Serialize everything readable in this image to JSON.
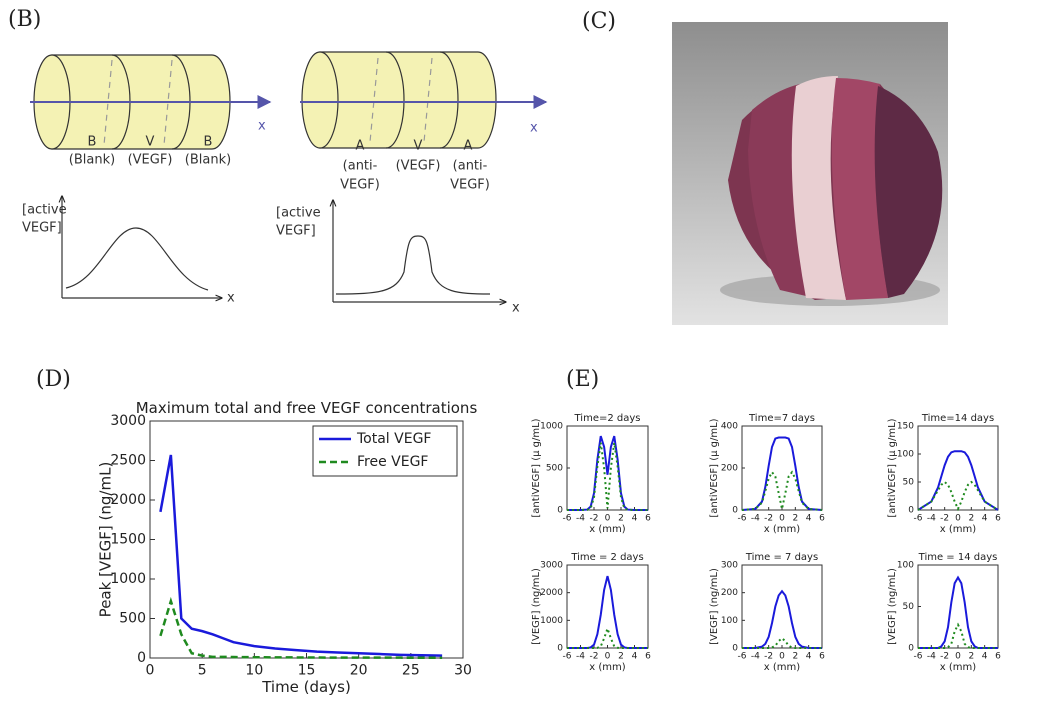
{
  "panel_labels": [
    "(B)",
    "(C)",
    "(D)",
    "(E)"
  ],
  "diagram": {
    "left": {
      "segments": [
        {
          "letter": "B",
          "caption": [
            "(Blank)"
          ]
        },
        {
          "letter": "V",
          "caption": [
            "(VEGF)"
          ]
        },
        {
          "letter": "B",
          "caption": [
            "(Blank)"
          ]
        }
      ],
      "axis_label": "x",
      "plot_ylabel": [
        "[active",
        "VEGF]"
      ],
      "plot_xlabel": "x"
    },
    "right": {
      "segments": [
        {
          "letter": "A",
          "caption": [
            "(anti-",
            "VEGF)"
          ]
        },
        {
          "letter": "V",
          "caption": [
            "(VEGF)"
          ]
        },
        {
          "letter": "A",
          "caption": [
            "(anti-",
            "VEGF)"
          ]
        }
      ],
      "axis_label": "x",
      "plot_ylabel": [
        "[active",
        "VEGF]"
      ],
      "plot_xlabel": "x"
    }
  },
  "chart_data": [
    {
      "type": "line",
      "title": "Maximum total and free VEGF concentrations",
      "xlabel": "Time (days)",
      "ylabel": "Peak [VEGF] (ng/mL)",
      "x": [
        1,
        2,
        3,
        4,
        5,
        6,
        7,
        8,
        10,
        12,
        14,
        16,
        18,
        20,
        22,
        24,
        26,
        28
      ],
      "series": [
        {
          "name": "Total VEGF",
          "color": "#1a1adb",
          "style": "solid",
          "values": [
            1850,
            2570,
            500,
            370,
            340,
            300,
            250,
            200,
            150,
            120,
            100,
            80,
            70,
            60,
            50,
            40,
            35,
            30
          ]
        },
        {
          "name": "Free VEGF",
          "color": "#1f8a1f",
          "style": "dashed",
          "values": [
            280,
            720,
            300,
            60,
            30,
            15,
            15,
            12,
            10,
            8,
            7,
            6,
            5,
            5,
            4,
            4,
            3,
            3
          ]
        }
      ],
      "xlim": [
        0,
        30
      ],
      "xticks": [
        0,
        5,
        10,
        15,
        20,
        25,
        30
      ],
      "ylim": [
        0,
        3000
      ],
      "yticks": [
        0,
        500,
        1000,
        1500,
        2000,
        2500,
        3000
      ],
      "legend": "upper right"
    },
    {
      "type": "line",
      "title": "Time=2 days",
      "xlabel": "x (mm)",
      "ylabel": "[antiVEGF] (μ g/mL)",
      "x": [
        -6,
        -4,
        -3,
        -2.5,
        -2,
        -1.5,
        -1,
        -0.5,
        0,
        0.5,
        1,
        1.5,
        2,
        2.5,
        3,
        4,
        6
      ],
      "series": [
        {
          "color": "#1a1adb",
          "style": "solid",
          "values": [
            0,
            0,
            5,
            40,
            200,
            600,
            880,
            750,
            420,
            750,
            880,
            600,
            200,
            40,
            5,
            0,
            0
          ]
        },
        {
          "color": "#1f8a1f",
          "style": "dotted",
          "values": [
            0,
            0,
            2,
            20,
            150,
            520,
            800,
            500,
            20,
            500,
            800,
            520,
            150,
            20,
            2,
            0,
            0
          ]
        }
      ],
      "xlim": [
        -6,
        6
      ],
      "xticks": [
        -6,
        -4,
        -2,
        0,
        2,
        4,
        6
      ],
      "ylim": [
        0,
        1000
      ],
      "yticks": [
        0,
        500,
        1000
      ]
    },
    {
      "type": "line",
      "title": "Time=7 days",
      "xlabel": "x (mm)",
      "ylabel": "[antiVEGF] (μ g/mL)",
      "x": [
        -6,
        -4,
        -3,
        -2.5,
        -2,
        -1.5,
        -1,
        -0.5,
        0,
        0.5,
        1,
        1.5,
        2,
        2.5,
        3,
        4,
        6
      ],
      "series": [
        {
          "color": "#1a1adb",
          "style": "solid",
          "values": [
            0,
            5,
            40,
            110,
            210,
            300,
            340,
            345,
            345,
            345,
            340,
            300,
            210,
            110,
            40,
            5,
            0
          ]
        },
        {
          "color": "#1f8a1f",
          "style": "dotted",
          "values": [
            0,
            5,
            35,
            90,
            150,
            180,
            160,
            80,
            5,
            80,
            160,
            180,
            150,
            90,
            35,
            5,
            0
          ]
        }
      ],
      "xlim": [
        -6,
        6
      ],
      "xticks": [
        -6,
        -4,
        -2,
        0,
        2,
        4,
        6
      ],
      "ylim": [
        0,
        400
      ],
      "yticks": [
        0,
        200,
        400
      ]
    },
    {
      "type": "line",
      "title": "Time=14 days",
      "xlabel": "x (mm)",
      "ylabel": "[antiVEGF] (μ g/mL)",
      "x": [
        -6,
        -4,
        -3,
        -2.5,
        -2,
        -1.5,
        -1,
        -0.5,
        0,
        0.5,
        1,
        1.5,
        2,
        2.5,
        3,
        4,
        6
      ],
      "series": [
        {
          "color": "#1a1adb",
          "style": "solid",
          "values": [
            0,
            15,
            40,
            60,
            80,
            95,
            103,
            105,
            105,
            105,
            103,
            95,
            80,
            60,
            40,
            15,
            0
          ]
        },
        {
          "color": "#1f8a1f",
          "style": "dotted",
          "values": [
            0,
            15,
            35,
            45,
            50,
            45,
            32,
            15,
            2,
            15,
            32,
            45,
            50,
            45,
            35,
            15,
            0
          ]
        }
      ],
      "xlim": [
        -6,
        6
      ],
      "xticks": [
        -6,
        -4,
        -2,
        0,
        2,
        4,
        6
      ],
      "ylim": [
        0,
        150
      ],
      "yticks": [
        0,
        50,
        100,
        150
      ]
    },
    {
      "type": "line",
      "title": "Time = 2 days",
      "xlabel": "x (mm)",
      "ylabel": "[VEGF] (ng/mL)",
      "x": [
        -6,
        -4,
        -3,
        -2.5,
        -2,
        -1.5,
        -1,
        -0.5,
        0,
        0.5,
        1,
        1.5,
        2,
        2.5,
        3,
        4,
        6
      ],
      "series": [
        {
          "color": "#1a1adb",
          "style": "solid",
          "values": [
            0,
            0,
            0,
            20,
            120,
            500,
            1200,
            2100,
            2600,
            2100,
            1200,
            500,
            120,
            20,
            0,
            0,
            0
          ]
        },
        {
          "color": "#1f8a1f",
          "style": "dotted",
          "values": [
            0,
            0,
            0,
            0,
            0,
            5,
            60,
            350,
            700,
            350,
            60,
            5,
            0,
            0,
            0,
            0,
            0
          ]
        }
      ],
      "xlim": [
        -6,
        6
      ],
      "xticks": [
        -6,
        -4,
        -2,
        0,
        2,
        4,
        6
      ],
      "ylim": [
        0,
        3000
      ],
      "yticks": [
        0,
        1000,
        2000,
        3000
      ]
    },
    {
      "type": "line",
      "title": "Time = 7 days",
      "xlabel": "x (mm)",
      "ylabel": "[VEGF] (ng/mL)",
      "x": [
        -6,
        -4,
        -3,
        -2.5,
        -2,
        -1.5,
        -1,
        -0.5,
        0,
        0.5,
        1,
        1.5,
        2,
        2.5,
        3,
        4,
        6
      ],
      "series": [
        {
          "color": "#1a1adb",
          "style": "solid",
          "values": [
            0,
            0,
            5,
            15,
            40,
            90,
            150,
            190,
            205,
            190,
            150,
            90,
            40,
            15,
            5,
            0,
            0
          ]
        },
        {
          "color": "#1f8a1f",
          "style": "dotted",
          "values": [
            0,
            0,
            0,
            0,
            0,
            2,
            8,
            25,
            35,
            25,
            8,
            2,
            0,
            0,
            0,
            0,
            0
          ]
        }
      ],
      "xlim": [
        -6,
        6
      ],
      "xticks": [
        -6,
        -4,
        -2,
        0,
        2,
        4,
        6
      ],
      "ylim": [
        0,
        300
      ],
      "yticks": [
        0,
        100,
        200,
        300
      ]
    },
    {
      "type": "line",
      "title": "Time = 14 days",
      "xlabel": "x (mm)",
      "ylabel": "[VEGF] (ng/mL)",
      "x": [
        -6,
        -4,
        -3,
        -2.5,
        -2,
        -1.5,
        -1,
        -0.5,
        0,
        0.5,
        1,
        1.5,
        2,
        2.5,
        3,
        4,
        6
      ],
      "series": [
        {
          "color": "#1a1adb",
          "style": "solid",
          "values": [
            0,
            0,
            0,
            2,
            8,
            25,
            55,
            78,
            85,
            78,
            55,
            25,
            8,
            2,
            0,
            0,
            0
          ]
        },
        {
          "color": "#1f8a1f",
          "style": "dotted",
          "values": [
            0,
            0,
            0,
            0,
            0,
            1,
            5,
            20,
            28,
            20,
            5,
            1,
            0,
            0,
            0,
            0,
            0
          ]
        }
      ],
      "xlim": [
        -6,
        6
      ],
      "xticks": [
        -6,
        -4,
        -2,
        0,
        2,
        4,
        6
      ],
      "ylim": [
        0,
        100
      ],
      "yticks": [
        0,
        50,
        100
      ]
    }
  ]
}
